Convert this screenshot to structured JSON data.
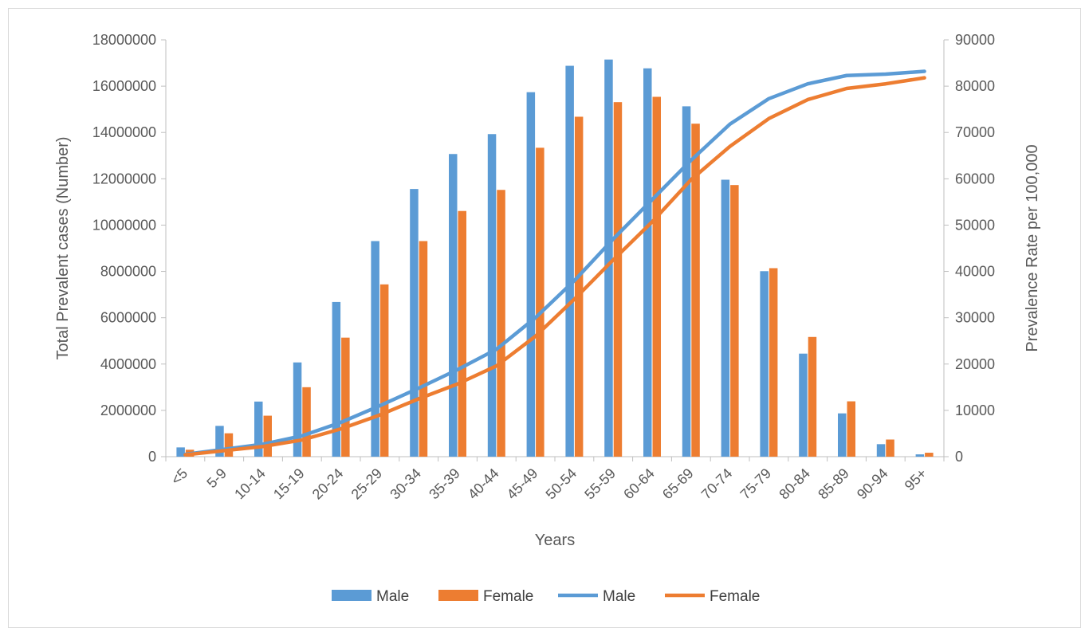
{
  "chart_data": {
    "type": "bar",
    "categories": [
      "<5",
      "5-9",
      "10-14",
      "15-19",
      "20-24",
      "25-29",
      "30-34",
      "35-39",
      "40-44",
      "45-49",
      "50-54",
      "55-59",
      "60-64",
      "65-69",
      "70-74",
      "75-79",
      "80-84",
      "85-89",
      "90-94",
      "95+"
    ],
    "series": [
      {
        "name": "Male",
        "type": "bar",
        "axis": "left",
        "color": "#5b9bd5",
        "values": [
          400000,
          1330000,
          2380000,
          4070000,
          6680000,
          9310000,
          11560000,
          13070000,
          13930000,
          15740000,
          16880000,
          17150000,
          16770000,
          15130000,
          11960000,
          8010000,
          4450000,
          1870000,
          540000,
          100000
        ]
      },
      {
        "name": "Female",
        "type": "bar",
        "axis": "left",
        "color": "#ed7d31",
        "values": [
          300000,
          1010000,
          1770000,
          3000000,
          5140000,
          7440000,
          9310000,
          10610000,
          11520000,
          13340000,
          14680000,
          15310000,
          15540000,
          14380000,
          11730000,
          8140000,
          5170000,
          2390000,
          740000,
          170000
        ]
      },
      {
        "name": "Male",
        "type": "line",
        "axis": "right",
        "color": "#5b9bd5",
        "values": [
          500,
          1600,
          2700,
          4500,
          7400,
          11000,
          14800,
          18800,
          23200,
          30000,
          38000,
          47000,
          55500,
          64000,
          71800,
          77300,
          80500,
          82300,
          82600,
          83200
        ]
      },
      {
        "name": "Female",
        "type": "line",
        "axis": "right",
        "color": "#ed7d31",
        "values": [
          400,
          1300,
          2200,
          3600,
          6000,
          9000,
          12500,
          15700,
          19600,
          26000,
          34000,
          42500,
          50700,
          59800,
          67000,
          73000,
          77100,
          79500,
          80500,
          81800
        ]
      }
    ],
    "xlabel": "Years",
    "ylabel": "Total Prevalent cases (Number)",
    "y2label": "Prevalence Rate per 100,000",
    "ylim": [
      0,
      18000000
    ],
    "y2lim": [
      0,
      90000
    ],
    "yticks": [
      "0",
      "2000000",
      "4000000",
      "6000000",
      "8000000",
      "10000000",
      "12000000",
      "14000000",
      "16000000",
      "18000000"
    ],
    "y2ticks": [
      "0",
      "10000",
      "20000",
      "30000",
      "40000",
      "50000",
      "60000",
      "70000",
      "80000",
      "90000"
    ],
    "grid": false,
    "legend": "bottom"
  }
}
